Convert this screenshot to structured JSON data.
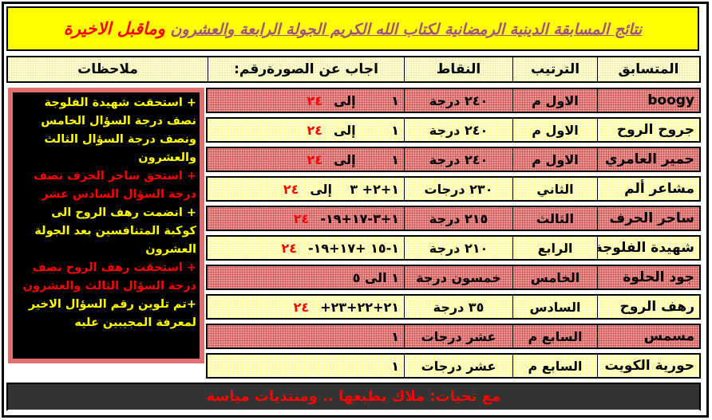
{
  "title": {
    "main": "نتائج المسابقة الدينية الرمضانية لكتاب الله الكريم الجولة الرابعة  والعشرون",
    "suffix": "وماقبل الاخيرة"
  },
  "headers": [
    "المتسابق",
    "الترتيب",
    "النقاط",
    "اجاب عن الصورةرقم:",
    "ملاحظات"
  ],
  "rows": [
    {
      "name": "boogy",
      "rank": "الاول م",
      "points": "٢٤٠ درجة",
      "answer": "١        إلى",
      "answer_red": "٢٤",
      "color": "red"
    },
    {
      "name": "جروح الروح",
      "rank": "الاول م",
      "points": "٢٤٠ درجة",
      "answer": "١        إلى",
      "answer_red": "٢٤",
      "color": "yellow"
    },
    {
      "name": "حمير العامري",
      "rank": "الاول م",
      "points": "٢٤٠ درجة",
      "answer": "١        إلى",
      "answer_red": "٢٤",
      "color": "red"
    },
    {
      "name": "مشاعر ألم",
      "rank": "الثاني",
      "points": "٢٣٠ درجات",
      "answer": "١+٢+ ٣    إلى",
      "answer_red": "٢٤",
      "color": "yellow"
    },
    {
      "name": "ساحر الحرف",
      "rank": "الثالث",
      "points": "٢١٥ درجة",
      "answer": "١+٣-١٧+١٩-",
      "answer_red": "٢٤",
      "color": "red"
    },
    {
      "name": "شهيدة الفلوجة",
      "rank": "الرابع",
      "points": "٢١٠ درجة",
      "answer": "١-١٥ +١٧+١٩-",
      "answer_red": "٢٤",
      "color": "yellow"
    },
    {
      "name": "جود الحلوة",
      "rank": "الخامس",
      "points": "خمسون درجة",
      "answer": "١ الى ٥",
      "answer_red": "",
      "color": "red"
    },
    {
      "name": "رهف الروح",
      "rank": "السادس",
      "points": "٣٥ درجة",
      "answer": "٢١+٢٢+٢٣+",
      "answer_red": "٢٤",
      "color": "yellow"
    },
    {
      "name": "مسمس",
      "rank": "السابع م",
      "points": "عشر درجات",
      "answer": "١",
      "answer_red": "",
      "color": "red"
    },
    {
      "name": "حورية الكويت",
      "rank": "السابع م",
      "points": "عشر درجات",
      "answer": "١",
      "answer_red": "",
      "color": "yellow"
    }
  ],
  "notes": [
    {
      "text": "+ استحقت شهيدة الفلوجة نصف درجة السؤال الخامس ونصف درجة السؤال الثالث والعشرون",
      "color": "yellow"
    },
    {
      "text": "+ استحق ساحر الحرف نصف درجة السؤال السادس عشر",
      "color": "red"
    },
    {
      "text": "+ انضمت رهف الروح الى كوكبة المتنافسين بعد الجولة العشرون",
      "color": "yellow"
    },
    {
      "text": "+ استحقت رهف الروح نصف درجة السؤال الثالث والعشرون",
      "color": "red"
    },
    {
      "text": "+تم تلوين رقم السؤال الاخير لمعرفة المجيبين عليه",
      "color": "yellow"
    }
  ],
  "footer": "مع تحيات: ملاك بطبعها .. ومنتديات مياسة",
  "colors": {
    "title_bg": "#ffff00",
    "row_red": "#e79696",
    "row_yellow": "#ffff99",
    "notes_bg": "#000000",
    "footer_bg": "#333333",
    "accent_red": "#ff0000"
  }
}
